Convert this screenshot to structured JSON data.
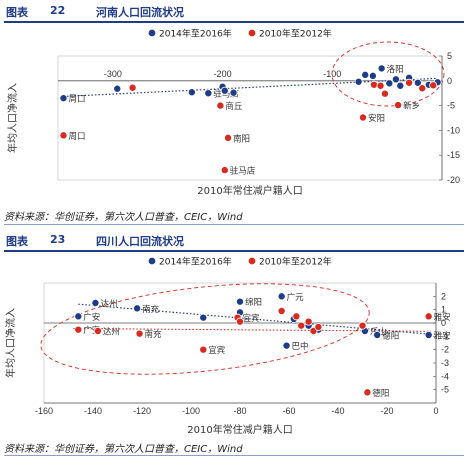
{
  "figures": [
    {
      "label": "图表",
      "number": "22",
      "title": "河南人口回流状况",
      "source": "资料来源：华创证券，第六次人口普查，CEIC，Wind"
    },
    {
      "label": "图表",
      "number": "23",
      "title": "四川人口回流状况",
      "source": "资料来源：华创证券，第六次人口普查，CEIC，Wind"
    }
  ],
  "colors": {
    "series_2014_2016": "#1f3c88",
    "series_2010_2012": "#d62b1e",
    "trend": "#1f3c88",
    "ellipse": "#d62b1e",
    "header": "#1f3c88"
  },
  "chart_data": [
    {
      "type": "scatter",
      "title": "河南人口回流状况",
      "xlabel": "2010年常住减户籍人口",
      "ylabel": "年均人口净流入",
      "xlim": [
        -350,
        0
      ],
      "ylim": [
        -20,
        5
      ],
      "xticks": [
        -300,
        -200,
        -100
      ],
      "yticks": [
        5,
        0,
        -5,
        -10,
        -15,
        -20
      ],
      "legend": "top-center",
      "series": [
        {
          "name": "2014年至2016年",
          "color": "#1f3c88",
          "points": [
            {
              "x": -345,
              "y": -3.5,
              "label": "周口"
            },
            {
              "x": -296,
              "y": -1.6,
              "label": ""
            },
            {
              "x": -228,
              "y": -2.3,
              "label": ""
            },
            {
              "x": -213,
              "y": -2.5,
              "label": "驻马店"
            },
            {
              "x": -200,
              "y": -1.2,
              "label": ""
            },
            {
              "x": -198,
              "y": -2.0,
              "label": ""
            },
            {
              "x": -190,
              "y": -2.4,
              "label": ""
            },
            {
              "x": -76,
              "y": -0.2,
              "label": ""
            },
            {
              "x": -70,
              "y": 1.2,
              "label": ""
            },
            {
              "x": -63,
              "y": 1.0,
              "label": ""
            },
            {
              "x": -55,
              "y": 2.5,
              "label": "洛阳"
            },
            {
              "x": -48,
              "y": -0.5,
              "label": ""
            },
            {
              "x": -42,
              "y": 0.3,
              "label": ""
            },
            {
              "x": -38,
              "y": -1.0,
              "label": ""
            },
            {
              "x": -30,
              "y": 0.6,
              "label": ""
            },
            {
              "x": -22,
              "y": -0.4,
              "label": ""
            },
            {
              "x": -12,
              "y": -0.8,
              "label": ""
            },
            {
              "x": -4,
              "y": -0.3,
              "label": ""
            }
          ]
        },
        {
          "name": "2010年至2012年",
          "color": "#d62b1e",
          "points": [
            {
              "x": -345,
              "y": -11.0,
              "label": "周口"
            },
            {
              "x": -282,
              "y": -1.4,
              "label": ""
            },
            {
              "x": -202,
              "y": -5.0,
              "label": "商丘"
            },
            {
              "x": -195,
              "y": -11.5,
              "label": "南阳"
            },
            {
              "x": -198,
              "y": -18.0,
              "label": "驻马店"
            },
            {
              "x": -72,
              "y": -7.4,
              "label": "安阳"
            },
            {
              "x": -62,
              "y": -0.8,
              "label": ""
            },
            {
              "x": -56,
              "y": -1.0,
              "label": ""
            },
            {
              "x": -52,
              "y": -2.6,
              "label": ""
            },
            {
              "x": -40,
              "y": -4.9,
              "label": "新乡"
            },
            {
              "x": -30,
              "y": -0.4,
              "label": ""
            },
            {
              "x": -18,
              "y": -1.5,
              "label": ""
            },
            {
              "x": -8,
              "y": -0.9,
              "label": ""
            }
          ]
        }
      ]
    },
    {
      "type": "scatter",
      "title": "四川人口回流状况",
      "xlabel": "2010年常住减户籍人口",
      "ylabel": "年均人口净流入",
      "xlim": [
        -160,
        0
      ],
      "ylim": [
        -6,
        3
      ],
      "xticks": [
        -160,
        -140,
        -120,
        -100,
        -80,
        -60,
        -40,
        -20,
        0
      ],
      "yticks": [
        2,
        1,
        0,
        -1,
        -2,
        -3,
        -4,
        -5
      ],
      "legend": "top-center",
      "series": [
        {
          "name": "2014年至2016年",
          "color": "#1f3c88",
          "points": [
            {
              "x": -146,
              "y": 0.5,
              "label": "广安"
            },
            {
              "x": -139,
              "y": 1.5,
              "label": "达州"
            },
            {
              "x": -122,
              "y": 1.1,
              "label": "南充"
            },
            {
              "x": -95,
              "y": 0.4,
              "label": ""
            },
            {
              "x": -80,
              "y": 1.6,
              "label": "绵阳"
            },
            {
              "x": -80,
              "y": 0.8,
              "label": ""
            },
            {
              "x": -63,
              "y": 2.0,
              "label": "广元"
            },
            {
              "x": -61,
              "y": -1.7,
              "label": "巴中"
            },
            {
              "x": -58,
              "y": 0.3,
              "label": ""
            },
            {
              "x": -52,
              "y": -0.2,
              "label": ""
            },
            {
              "x": -48,
              "y": -0.5,
              "label": ""
            },
            {
              "x": -29,
              "y": -0.6,
              "label": "乐山"
            },
            {
              "x": -24,
              "y": -0.9,
              "label": "德阳"
            },
            {
              "x": -3,
              "y": -0.9,
              "label": "雅安"
            }
          ]
        },
        {
          "name": "2010年至2012年",
          "color": "#d62b1e",
          "points": [
            {
              "x": -146,
              "y": -0.5,
              "label": "广安"
            },
            {
              "x": -138,
              "y": -0.6,
              "label": "达州"
            },
            {
              "x": -121,
              "y": -0.8,
              "label": "南充"
            },
            {
              "x": -95,
              "y": -2.0,
              "label": "宜宾"
            },
            {
              "x": -81,
              "y": 0.4,
              "label": "宜宾"
            },
            {
              "x": -80,
              "y": 0.1,
              "label": ""
            },
            {
              "x": -63,
              "y": 0.9,
              "label": ""
            },
            {
              "x": -57,
              "y": 0.5,
              "label": ""
            },
            {
              "x": -55,
              "y": -0.2,
              "label": ""
            },
            {
              "x": -52,
              "y": 0.1,
              "label": ""
            },
            {
              "x": -50,
              "y": -0.6,
              "label": ""
            },
            {
              "x": -48,
              "y": -0.3,
              "label": ""
            },
            {
              "x": -30,
              "y": -0.2,
              "label": ""
            },
            {
              "x": -28,
              "y": -5.2,
              "label": "德阳"
            },
            {
              "x": -3,
              "y": 0.5,
              "label": "雅安"
            }
          ]
        }
      ]
    }
  ]
}
